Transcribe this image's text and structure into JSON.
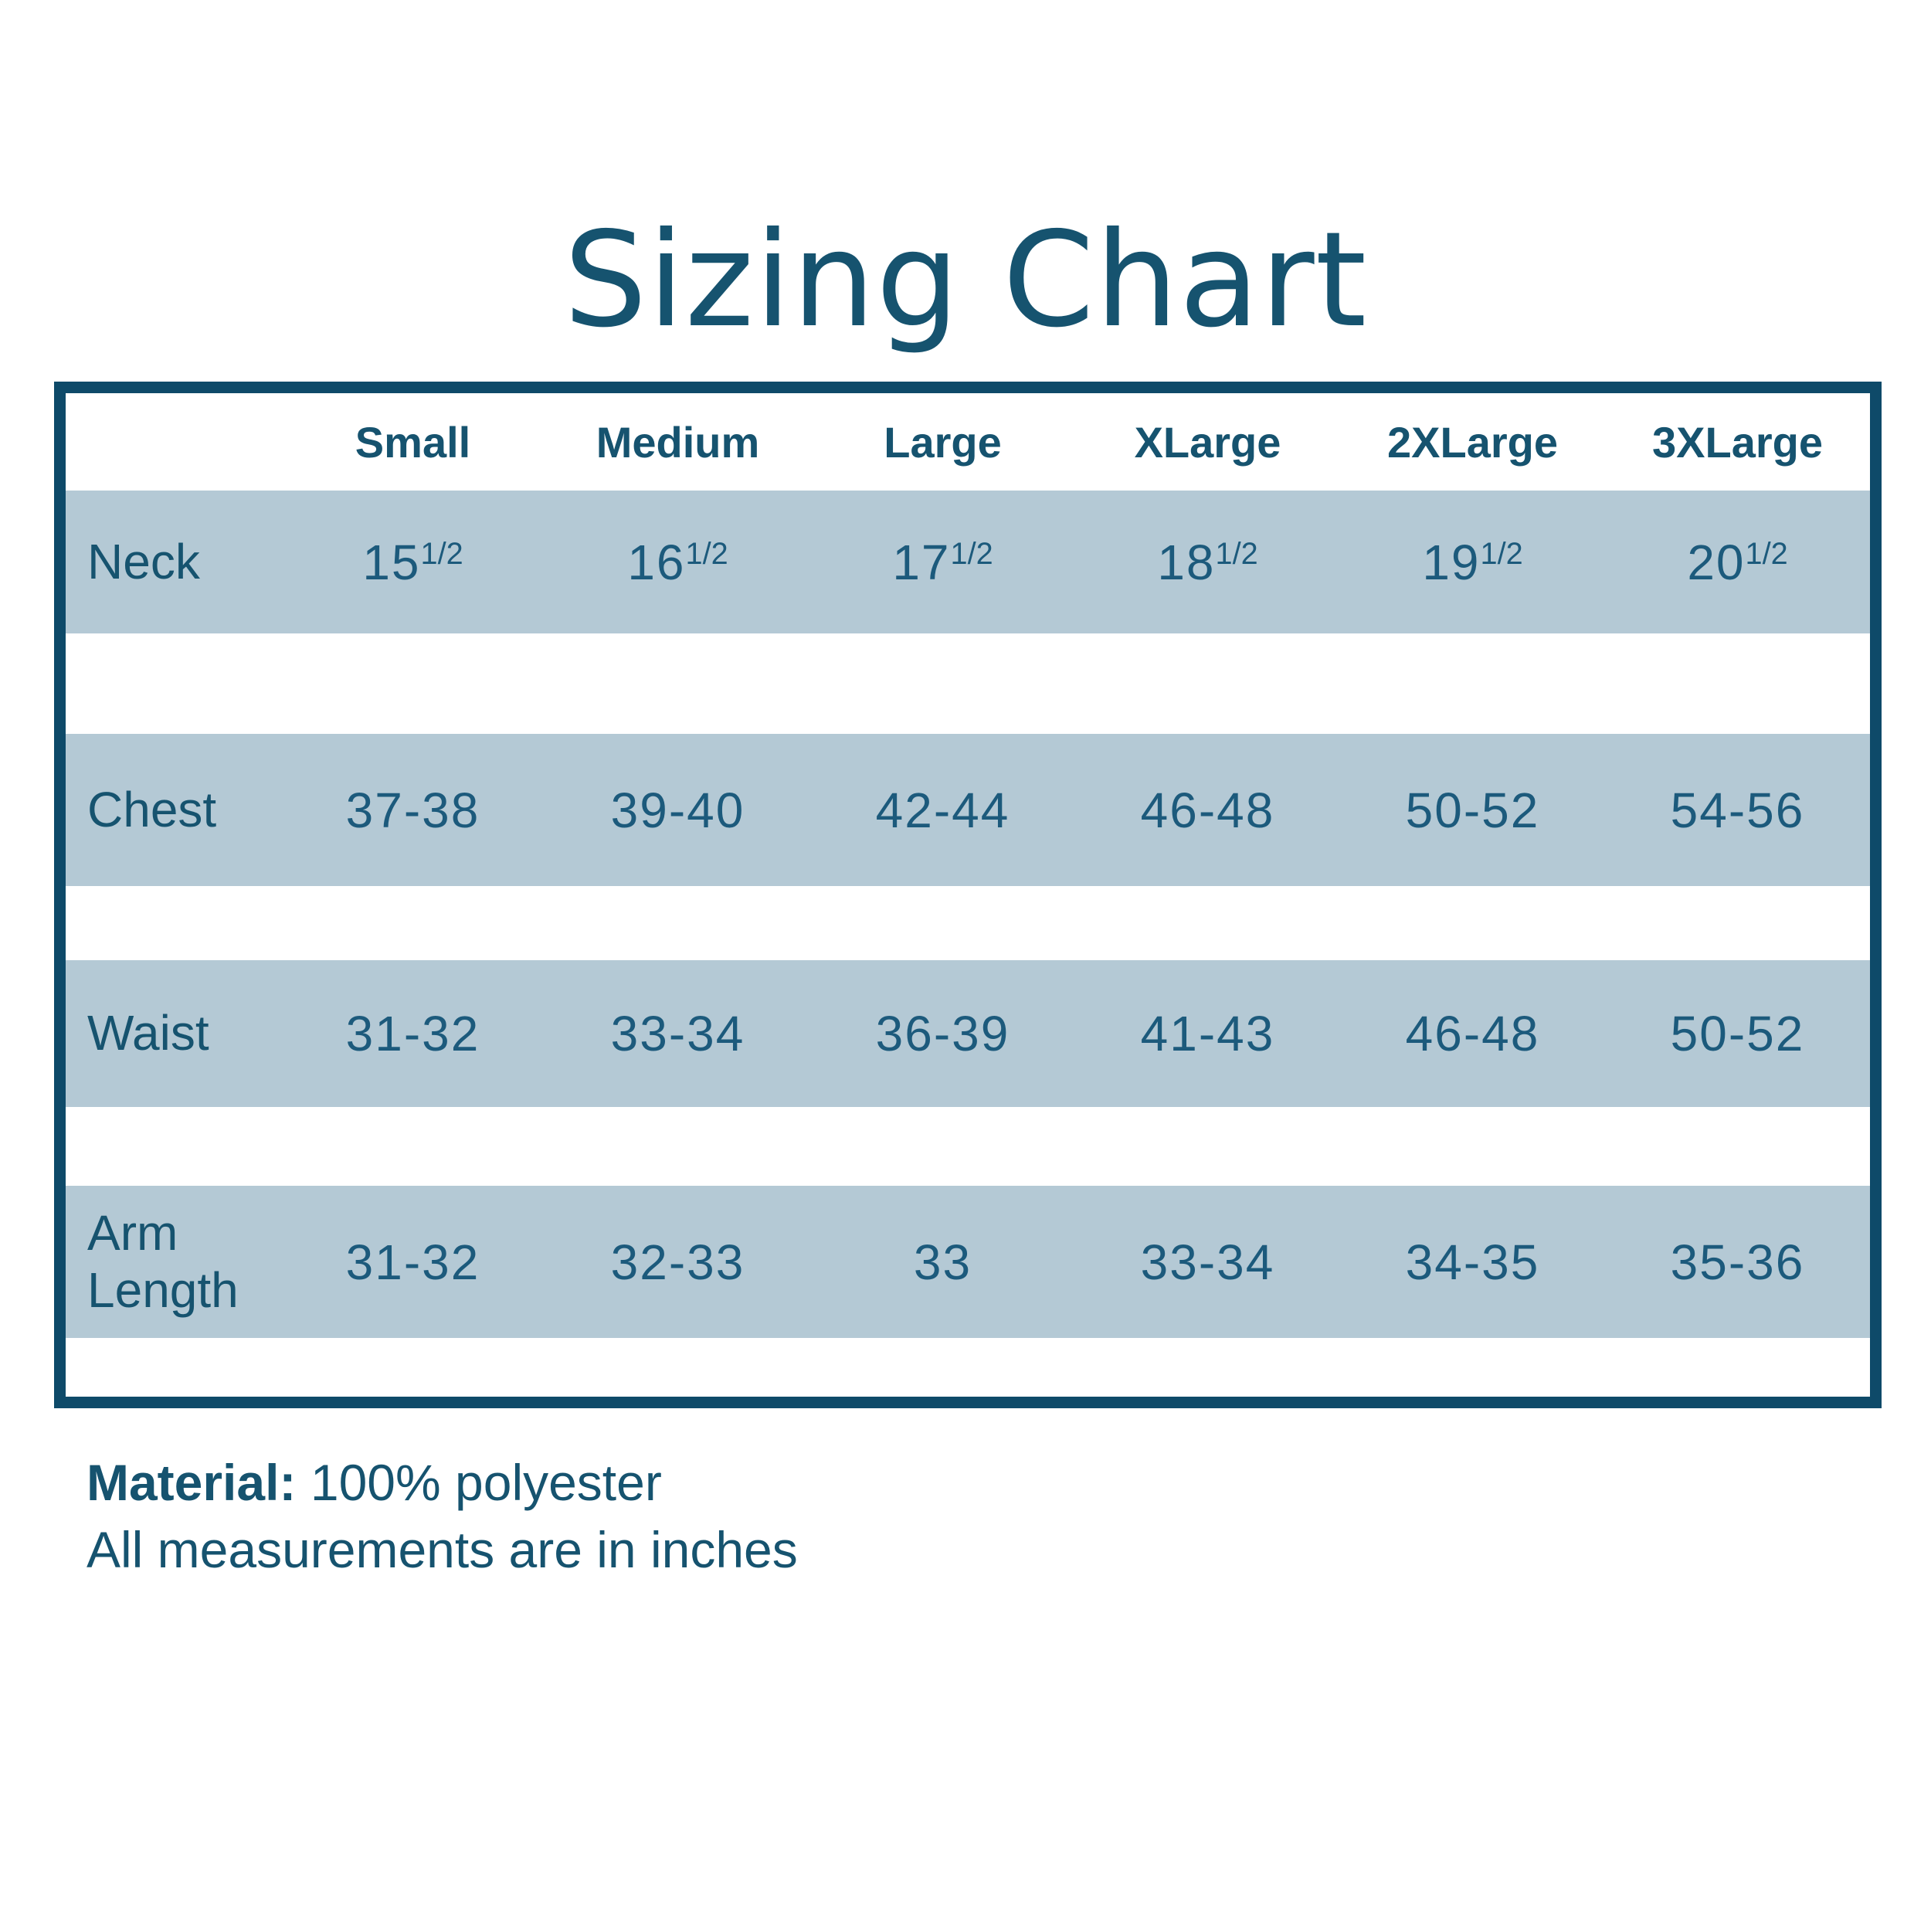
{
  "title": "Sizing Chart",
  "colors": {
    "heading_text": "#16536F",
    "data_text": "#1C5A7C",
    "table_border": "#0E4A69",
    "row_band": "#B4C9D5",
    "page_background": "#FFFFFF"
  },
  "table": {
    "columns": [
      "Small",
      "Medium",
      "Large",
      "XLarge",
      "2XLarge",
      "3XLarge"
    ],
    "rows": [
      {
        "label": "Neck",
        "values": [
          {
            "v": "15",
            "sup": "1/2"
          },
          {
            "v": "16",
            "sup": "1/2"
          },
          {
            "v": "17",
            "sup": "1/2"
          },
          {
            "v": "18",
            "sup": "1/2"
          },
          {
            "v": "19",
            "sup": "1/2"
          },
          {
            "v": "20",
            "sup": "1/2"
          }
        ]
      },
      {
        "label": "Chest",
        "values": [
          {
            "v": "37-38"
          },
          {
            "v": "39-40"
          },
          {
            "v": "42-44"
          },
          {
            "v": "46-48"
          },
          {
            "v": "50-52"
          },
          {
            "v": "54-56"
          }
        ]
      },
      {
        "label": "Waist",
        "values": [
          {
            "v": "31-32"
          },
          {
            "v": "33-34"
          },
          {
            "v": "36-39"
          },
          {
            "v": "41-43"
          },
          {
            "v": "46-48"
          },
          {
            "v": "50-52"
          }
        ]
      },
      {
        "label": "Arm Length",
        "values": [
          {
            "v": "31-32"
          },
          {
            "v": "32-33"
          },
          {
            "v": "33"
          },
          {
            "v": "33-34"
          },
          {
            "v": "34-35"
          },
          {
            "v": "35-36"
          }
        ]
      }
    ]
  },
  "footer": {
    "material_label": "Material:",
    "material_value": "100% polyester",
    "note": "All measurements are in inches"
  }
}
